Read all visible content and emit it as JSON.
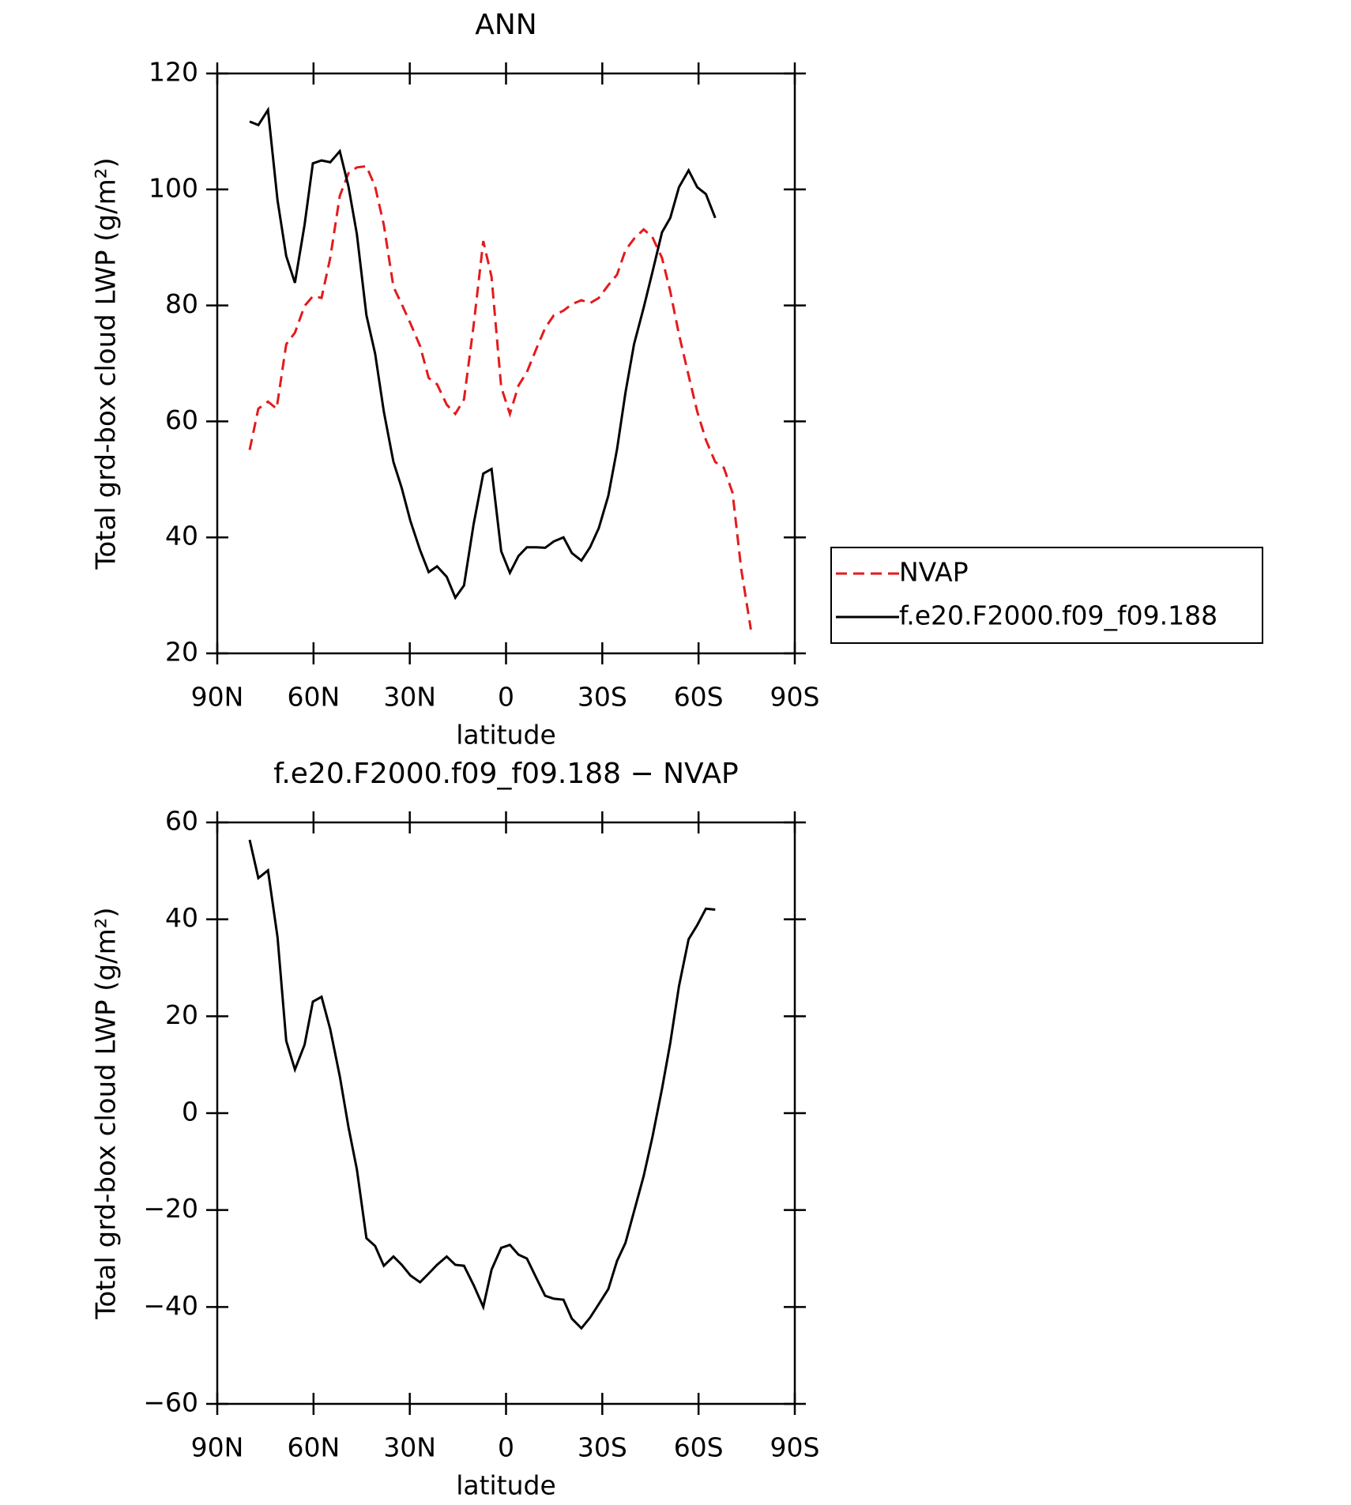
{
  "chart_data": [
    {
      "type": "line",
      "title": "ANN",
      "xlabel": "latitude",
      "ylabel": "Total grd-box cloud LWP (g/m²)",
      "xlim": [
        90,
        -90
      ],
      "xticks": [
        {
          "value": 90,
          "label": "90N"
        },
        {
          "value": 60,
          "label": "60N"
        },
        {
          "value": 30,
          "label": "30N"
        },
        0,
        {
          "value": -30,
          "label": "30S"
        },
        {
          "value": -60,
          "label": "60S"
        },
        {
          "value": -90,
          "label": "90S"
        }
      ],
      "ylim": [
        20,
        120
      ],
      "yticks": [
        20,
        40,
        60,
        80,
        100,
        120
      ],
      "legend": "right",
      "series": [
        {
          "name": "NVAP",
          "color": "#e41a1c",
          "linestyle": "dashed",
          "x": [
            79.9,
            77.2,
            74.2,
            71.5,
            68.5,
            65.8,
            62.8,
            60.2,
            57.5,
            54.8,
            51.8,
            49.1,
            46.5,
            43.5,
            40.8,
            38.1,
            35.1,
            32.5,
            29.8,
            26.8,
            24.1,
            21.5,
            18.5,
            15.8,
            13.1,
            10.1,
            7.1,
            4.5,
            1.5,
            -1.2,
            -3.9,
            -6.5,
            -9.5,
            -12.2,
            -14.9,
            -17.9,
            -20.5,
            -23.5,
            -26.2,
            -28.9,
            -31.9,
            -34.6,
            -37.2,
            -39.9,
            -42.9,
            -45.6,
            -48.6,
            -51.2,
            -53.9,
            -56.9,
            -59.6,
            -62.3,
            -65.2,
            -67.9,
            -70.6,
            -73.3,
            -76.3
          ],
          "values": [
            55.1,
            62.2,
            63.4,
            62.2,
            73.3,
            75.3,
            79.9,
            81.6,
            81.3,
            88.2,
            98.9,
            102.8,
            103.8,
            104.0,
            100.5,
            93.9,
            83.2,
            80.2,
            76.9,
            73.0,
            67.5,
            66.4,
            62.9,
            61.3,
            63.8,
            76.6,
            91.1,
            84.9,
            65.9,
            61.3,
            66.2,
            68.5,
            72.6,
            76.1,
            78.3,
            79.1,
            80.2,
            80.9,
            80.4,
            81.3,
            83.5,
            85.3,
            89.5,
            91.5,
            93.1,
            91.8,
            88.2,
            82.4,
            75.0,
            67.9,
            61.7,
            56.8,
            53.0,
            52.0,
            47.7,
            34.5,
            24.1
          ]
        },
        {
          "name": "f.e20.F2000.f09_f09.188",
          "color": "#000000",
          "linestyle": "solid",
          "x": [
            79.9,
            77.2,
            74.2,
            71.2,
            68.5,
            65.8,
            62.8,
            60.2,
            57.5,
            54.8,
            51.8,
            49.1,
            46.5,
            43.5,
            40.8,
            38.1,
            35.1,
            32.5,
            29.8,
            26.8,
            24.1,
            21.5,
            18.5,
            15.8,
            13.1,
            10.1,
            7.1,
            4.5,
            1.5,
            -1.2,
            -3.9,
            -6.5,
            -9.5,
            -12.2,
            -14.9,
            -17.9,
            -20.5,
            -23.5,
            -26.2,
            -28.9,
            -31.9,
            -34.6,
            -37.2,
            -39.9,
            -42.9,
            -45.6,
            -48.6,
            -51.2,
            -53.9,
            -56.9,
            -59.6,
            -62.3,
            -65.2
          ],
          "values": [
            111.7,
            111.1,
            113.7,
            98.1,
            88.5,
            83.9,
            93.9,
            104.5,
            105.0,
            104.7,
            106.6,
            100.5,
            92.3,
            78.3,
            71.7,
            61.7,
            53.0,
            48.5,
            42.8,
            37.8,
            34.0,
            35.0,
            33.2,
            29.6,
            31.7,
            42.3,
            51.0,
            51.8,
            37.6,
            33.9,
            36.8,
            38.3,
            38.3,
            38.2,
            39.3,
            40.0,
            37.3,
            36.0,
            38.3,
            41.6,
            47.2,
            55.2,
            64.9,
            73.3,
            79.6,
            85.7,
            92.6,
            95.1,
            100.4,
            103.3,
            100.4,
            99.2,
            95.1
          ]
        }
      ]
    },
    {
      "type": "line",
      "title": "f.e20.F2000.f09_f09.188 − NVAP",
      "xlabel": "latitude",
      "ylabel": "Total grd-box cloud LWP (g/m²)",
      "xlim": [
        90,
        -90
      ],
      "xticks": [
        {
          "value": 90,
          "label": "90N"
        },
        {
          "value": 60,
          "label": "60N"
        },
        {
          "value": 30,
          "label": "30N"
        },
        0,
        {
          "value": -30,
          "label": "30S"
        },
        {
          "value": -60,
          "label": "60S"
        },
        {
          "value": -90,
          "label": "90S"
        }
      ],
      "ylim": [
        -60,
        60
      ],
      "yticks": [
        {
          "value": -60,
          "label": "−60"
        },
        {
          "value": -40,
          "label": "−40"
        },
        {
          "value": -20,
          "label": "−20"
        },
        0,
        20,
        40,
        60
      ],
      "color": "#000000",
      "x": [
        79.9,
        77.2,
        74.2,
        71.2,
        68.5,
        65.8,
        62.8,
        60.2,
        57.5,
        54.8,
        51.8,
        49.1,
        46.5,
        43.5,
        40.8,
        38.1,
        35.1,
        32.5,
        29.8,
        26.8,
        24.1,
        21.5,
        18.5,
        15.8,
        13.1,
        10.1,
        7.1,
        4.5,
        1.5,
        -1.2,
        -3.9,
        -6.5,
        -9.5,
        -12.2,
        -14.9,
        -17.9,
        -20.5,
        -23.5,
        -26.2,
        -28.9,
        -31.9,
        -34.6,
        -37.2,
        -39.9,
        -42.9,
        -45.6,
        -48.6,
        -51.2,
        -53.9,
        -56.9,
        -59.6,
        -62.3,
        -65.2
      ],
      "values": [
        56.4,
        48.5,
        50.1,
        36.3,
        14.9,
        9.0,
        14.1,
        23.0,
        24.0,
        17.3,
        7.6,
        -2.9,
        -11.6,
        -25.8,
        -27.4,
        -31.5,
        -29.6,
        -31.3,
        -33.5,
        -34.9,
        -33.1,
        -31.3,
        -29.6,
        -31.3,
        -31.5,
        -35.5,
        -40.0,
        -32.3,
        -27.8,
        -27.2,
        -29.2,
        -30.0,
        -34.1,
        -37.7,
        -38.3,
        -38.5,
        -42.4,
        -44.4,
        -42.2,
        -39.4,
        -36.3,
        -30.5,
        -26.8,
        -20.3,
        -13.0,
        -5.0,
        5.0,
        14.5,
        26.2,
        35.9,
        38.8,
        42.2,
        42.0
      ]
    }
  ]
}
